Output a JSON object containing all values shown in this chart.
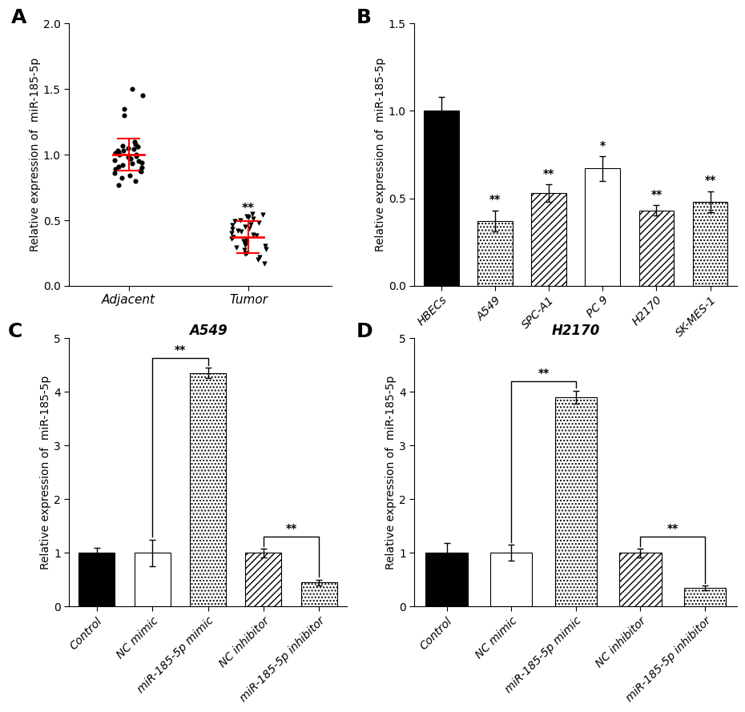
{
  "panel_A": {
    "adjacent_mean": 1.0,
    "adjacent_sem_upper": 0.12,
    "adjacent_sem_lower": 0.12,
    "adjacent_points": [
      0.77,
      0.8,
      0.82,
      0.84,
      0.86,
      0.87,
      0.88,
      0.89,
      0.9,
      0.91,
      0.92,
      0.93,
      0.94,
      0.95,
      0.96,
      0.97,
      0.97,
      0.98,
      0.99,
      1.0,
      1.0,
      1.01,
      1.02,
      1.03,
      1.03,
      1.04,
      1.05,
      1.06,
      1.07,
      1.08,
      1.1,
      1.3,
      1.35,
      1.45,
      1.5
    ],
    "tumor_mean": 0.37,
    "tumor_sem_upper": 0.12,
    "tumor_sem_lower": 0.12,
    "tumor_points": [
      0.17,
      0.2,
      0.22,
      0.24,
      0.25,
      0.27,
      0.28,
      0.29,
      0.3,
      0.31,
      0.32,
      0.33,
      0.34,
      0.35,
      0.36,
      0.37,
      0.38,
      0.39,
      0.4,
      0.41,
      0.42,
      0.43,
      0.44,
      0.45,
      0.46,
      0.47,
      0.48,
      0.49,
      0.5,
      0.51,
      0.52,
      0.52,
      0.53,
      0.54,
      0.55
    ],
    "ylabel": "Relative expression of  miR-185-5p",
    "ylim": [
      0,
      2.0
    ],
    "yticks": [
      0.0,
      0.5,
      1.0,
      1.5,
      2.0
    ],
    "xlabels": [
      "Adjacent",
      "Tumor"
    ],
    "significance": "**",
    "mean_color": "#FF0000",
    "point_color": "#000000"
  },
  "panel_B": {
    "categories": [
      "HBECs",
      "A549",
      "SPC-A1",
      "PC 9",
      "H2170",
      "SK-MES-1"
    ],
    "values": [
      1.0,
      0.37,
      0.53,
      0.67,
      0.43,
      0.48
    ],
    "errors": [
      0.08,
      0.06,
      0.05,
      0.07,
      0.03,
      0.06
    ],
    "significance": [
      "",
      "**",
      "**",
      "*",
      "**",
      "**"
    ],
    "ylabel": "Relative expression of  miR-185-5p",
    "ylim": [
      0,
      1.5
    ],
    "yticks": [
      0.0,
      0.5,
      1.0,
      1.5
    ],
    "bar_facecolors": [
      "#000000",
      "#ffffff",
      "#ffffff",
      "#ffffff",
      "#ffffff",
      "#ffffff"
    ],
    "bar_hatches": [
      "",
      "....",
      "////",
      "",
      "////",
      "...."
    ]
  },
  "panel_C": {
    "title": "A549",
    "categories": [
      "Control",
      "NC mimic",
      "miR-185-5p mimic",
      "NC inhibitor",
      "miR-185-5p inhibitor"
    ],
    "values": [
      1.0,
      1.0,
      4.35,
      1.0,
      0.45
    ],
    "errors": [
      0.1,
      0.25,
      0.1,
      0.08,
      0.05
    ],
    "ylabel": "Relative expression of  miR-185-5p",
    "ylim": [
      0,
      5
    ],
    "yticks": [
      0,
      1,
      2,
      3,
      4,
      5
    ],
    "bar_facecolors": [
      "#000000",
      "#ffffff",
      "#ffffff",
      "#ffffff",
      "#ffffff"
    ],
    "bar_hatches": [
      "",
      "",
      "....",
      "////",
      "...."
    ]
  },
  "panel_D": {
    "title": "H2170",
    "categories": [
      "Control",
      "NC mimic",
      "miR-185-5p mimic",
      "NC inhibitor",
      "miR-185-5p inhibitor"
    ],
    "values": [
      1.0,
      1.0,
      3.9,
      1.0,
      0.35
    ],
    "errors": [
      0.18,
      0.15,
      0.12,
      0.08,
      0.04
    ],
    "ylabel": "Relative expression of  miR-185-5p",
    "ylim": [
      0,
      5
    ],
    "yticks": [
      0,
      1,
      2,
      3,
      4,
      5
    ],
    "bar_facecolors": [
      "#000000",
      "#ffffff",
      "#ffffff",
      "#ffffff",
      "#ffffff"
    ],
    "bar_hatches": [
      "",
      "",
      "....",
      "////",
      "...."
    ]
  },
  "label_fontsize": 18,
  "axis_fontsize": 10,
  "tick_fontsize": 10
}
